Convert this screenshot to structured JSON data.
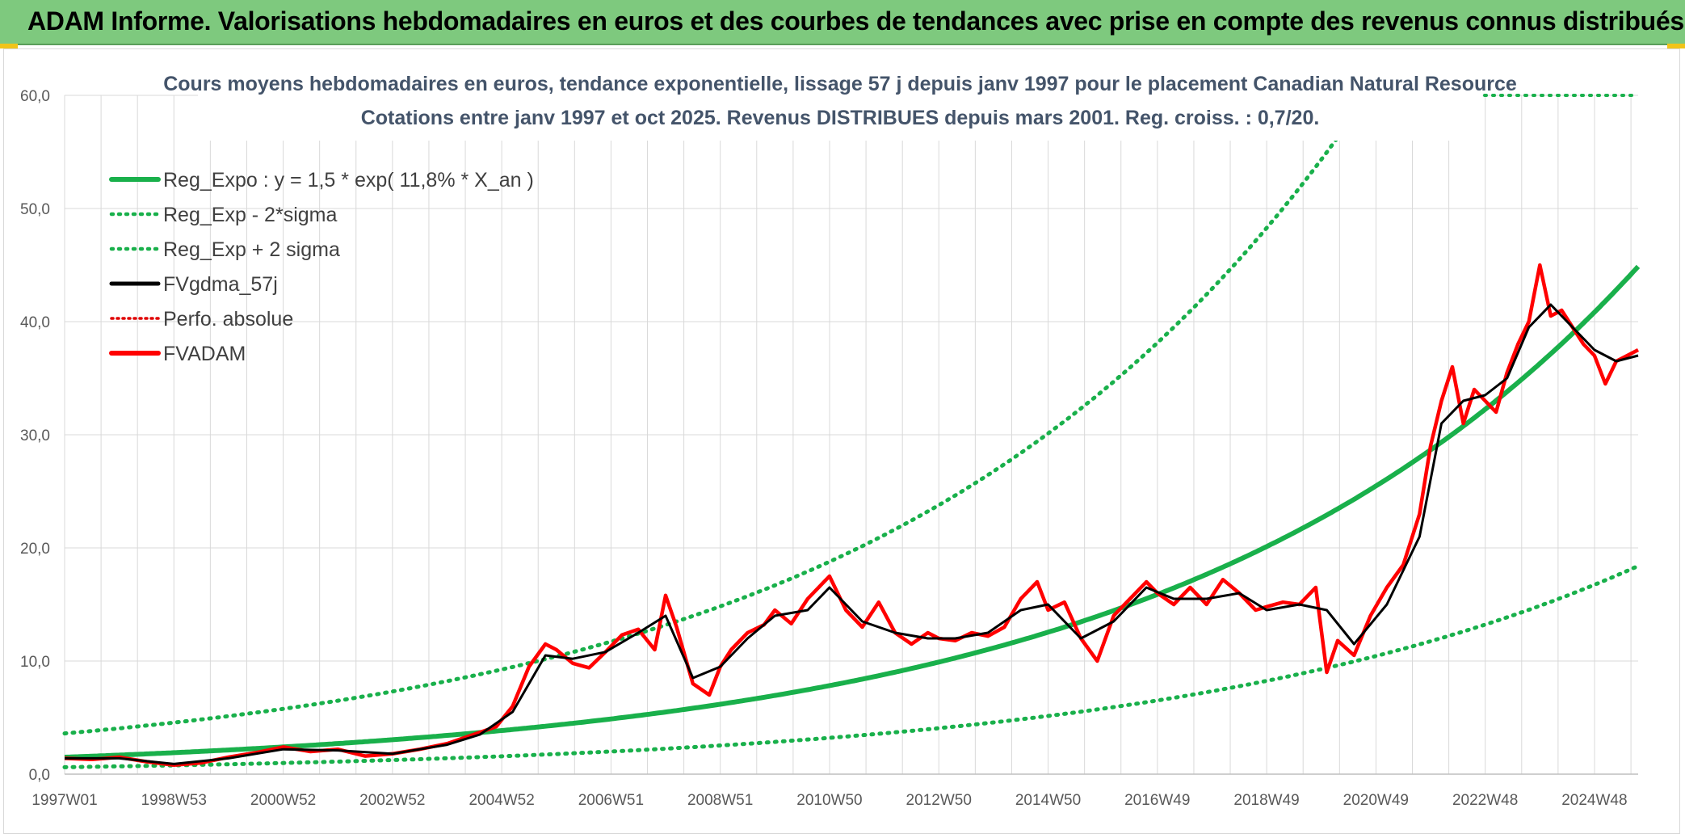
{
  "banner": {
    "title": "ADAM Informe. Valorisations hebdomadaires en euros et des courbes de tendances avec prise en compte des revenus connus distribués"
  },
  "colors": {
    "banner": "#7ec97e",
    "regExpo": "#19b04b",
    "sigma": "#19b04b",
    "fvgdma": "#000000",
    "perfo": "#e00000",
    "fvadam": "#ff0000",
    "grid": "#d9d9d9"
  },
  "chart_data": {
    "type": "line",
    "title": "Cours moyens hebdomadaires en euros, tendance exponentielle, lissage 57 j depuis janv 1997 pour le placement Canadian Natural Resource",
    "subtitle": "Cotations entre janv 1997 et oct 2025. Revenus DISTRIBUES depuis mars 2001. Reg. croiss. : 0,7/20.",
    "xlabel": "",
    "ylabel": "",
    "xlim": [
      1997.0,
      2025.8
    ],
    "ylim": [
      0,
      60
    ],
    "y_ticks": [
      "0,0",
      "10,0",
      "20,0",
      "30,0",
      "40,0",
      "50,0",
      "60,0"
    ],
    "x_ticks": [
      "1997W01",
      "1998W53",
      "2000W52",
      "2002W52",
      "2004W52",
      "2006W51",
      "2008W51",
      "2010W50",
      "2012W50",
      "2014W50",
      "2016W49",
      "2018W49",
      "2020W49",
      "2022W48",
      "2024W48"
    ],
    "x_tick_years": [
      1997.0,
      1999.0,
      2001.0,
      2003.0,
      2005.0,
      2007.0,
      2009.0,
      2011.0,
      2013.0,
      2015.0,
      2017.0,
      2019.0,
      2021.0,
      2023.0,
      2025.0
    ],
    "legend": [
      {
        "name": "Reg_Expo : y = 1,5 * exp( 11,8% *  X_an )",
        "style": "solid-green"
      },
      {
        "name": "Reg_Exp - 2*sigma",
        "style": "dotted-green"
      },
      {
        "name": "Reg_Exp + 2 sigma",
        "style": "dotted-green"
      },
      {
        "name": "FVgdma_57j",
        "style": "solid-black"
      },
      {
        "name": "Perfo. absolue",
        "style": "dotted-red"
      },
      {
        "name": "FVADAM",
        "style": "solid-red"
      }
    ],
    "regression": {
      "a": 1.5,
      "b": 0.118,
      "start_year": 1997.0,
      "upper_factor": 2.4,
      "lower_factor": 0.41
    },
    "series": [
      {
        "name": "FVADAM",
        "x": [
          1997.0,
          1997.5,
          1998.0,
          1998.5,
          1999.0,
          1999.5,
          2000.0,
          2000.5,
          2001.0,
          2001.5,
          2002.0,
          2002.5,
          2003.0,
          2003.5,
          2004.0,
          2004.3,
          2004.6,
          2004.9,
          2005.2,
          2005.5,
          2005.8,
          2006.0,
          2006.3,
          2006.6,
          2006.9,
          2007.2,
          2007.5,
          2007.8,
          2008.0,
          2008.2,
          2008.5,
          2008.8,
          2009.0,
          2009.2,
          2009.5,
          2009.8,
          2010.0,
          2010.3,
          2010.6,
          2011.0,
          2011.3,
          2011.6,
          2011.9,
          2012.2,
          2012.5,
          2012.8,
          2013.0,
          2013.3,
          2013.6,
          2013.9,
          2014.2,
          2014.5,
          2014.8,
          2015.0,
          2015.3,
          2015.6,
          2015.9,
          2016.2,
          2016.5,
          2016.8,
          2017.0,
          2017.3,
          2017.6,
          2017.9,
          2018.2,
          2018.5,
          2018.8,
          2019.0,
          2019.3,
          2019.6,
          2019.9,
          2020.1,
          2020.3,
          2020.6,
          2020.9,
          2021.2,
          2021.5,
          2021.8,
          2022.0,
          2022.2,
          2022.4,
          2022.6,
          2022.8,
          2023.0,
          2023.2,
          2023.4,
          2023.6,
          2023.8,
          2024.0,
          2024.2,
          2024.4,
          2024.6,
          2024.8,
          2025.0,
          2025.2,
          2025.4,
          2025.6,
          2025.8
        ],
        "values": [
          1.4,
          1.3,
          1.5,
          1.1,
          0.8,
          1.0,
          1.5,
          1.9,
          2.4,
          2.0,
          2.2,
          1.6,
          1.8,
          2.2,
          2.7,
          3.2,
          3.7,
          4.2,
          6.0,
          9.5,
          11.5,
          11.0,
          9.8,
          9.4,
          10.8,
          12.3,
          12.8,
          11.0,
          15.8,
          13.0,
          8.0,
          7.0,
          9.5,
          11.0,
          12.5,
          13.2,
          14.5,
          13.3,
          15.5,
          17.5,
          14.5,
          13.0,
          15.2,
          12.5,
          11.5,
          12.5,
          12.0,
          11.8,
          12.5,
          12.2,
          13.0,
          15.5,
          17.0,
          14.5,
          15.2,
          12.0,
          10.0,
          14.0,
          15.5,
          17.0,
          16.0,
          15.0,
          16.5,
          15.0,
          17.2,
          16.0,
          14.5,
          14.8,
          15.2,
          15.0,
          16.5,
          9.0,
          11.8,
          10.5,
          14.0,
          16.5,
          18.5,
          23.0,
          29.0,
          33.0,
          36.0,
          31.0,
          34.0,
          33.0,
          32.0,
          35.5,
          38.0,
          40.0,
          45.0,
          40.5,
          41.0,
          39.5,
          38.0,
          37.0,
          34.5,
          36.5,
          37.0,
          37.5
        ]
      },
      {
        "name": "FVgdma_57j",
        "x": [
          1997.0,
          1998.0,
          1999.0,
          2000.0,
          2001.0,
          2002.0,
          2003.0,
          2004.0,
          2004.6,
          2005.2,
          2005.8,
          2006.3,
          2006.9,
          2007.5,
          2008.0,
          2008.5,
          2009.0,
          2009.5,
          2010.0,
          2010.6,
          2011.0,
          2011.6,
          2012.2,
          2012.8,
          2013.3,
          2013.9,
          2014.5,
          2015.0,
          2015.6,
          2016.2,
          2016.8,
          2017.3,
          2017.9,
          2018.5,
          2019.0,
          2019.6,
          2020.1,
          2020.6,
          2021.2,
          2021.8,
          2022.2,
          2022.6,
          2023.0,
          2023.4,
          2023.8,
          2024.2,
          2024.6,
          2025.0,
          2025.4,
          2025.8
        ],
        "values": [
          1.4,
          1.4,
          0.9,
          1.4,
          2.2,
          2.1,
          1.8,
          2.6,
          3.5,
          5.5,
          10.5,
          10.2,
          10.8,
          12.5,
          14.0,
          8.5,
          9.5,
          12.0,
          14.0,
          14.5,
          16.5,
          13.5,
          12.5,
          12.0,
          12.0,
          12.5,
          14.5,
          15.0,
          12.0,
          13.5,
          16.5,
          15.5,
          15.5,
          16.0,
          14.5,
          15.0,
          14.5,
          11.5,
          15.0,
          21.0,
          31.0,
          33.0,
          33.5,
          35.0,
          39.5,
          41.5,
          39.5,
          37.5,
          36.5,
          37.0
        ]
      }
    ]
  }
}
